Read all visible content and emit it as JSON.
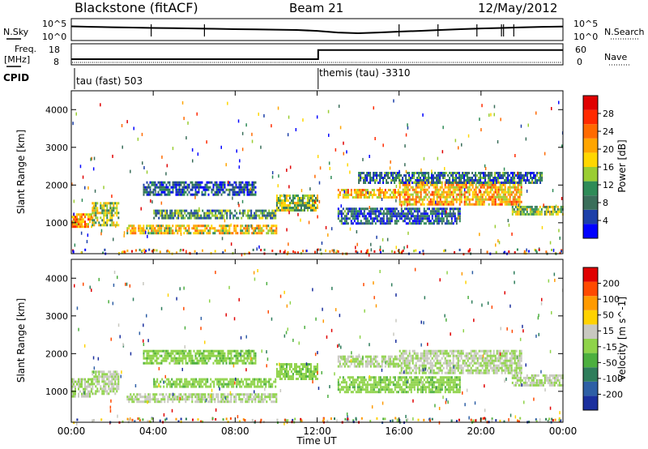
{
  "header": {
    "station": "Blackstone (fitACF)",
    "beam": "Beam 21",
    "date": "12/May/2012"
  },
  "noise_panel": {
    "left_label": "N.Sky",
    "right_label": "N.Search",
    "left_ticks": [
      "10^5",
      "10^0"
    ],
    "right_ticks": [
      "10^5",
      "10^0"
    ]
  },
  "freq_panel": {
    "left_label_1": "Freq.",
    "left_label_2": "[MHz]",
    "right_label": "Nave",
    "left_ticks": [
      "18",
      "8"
    ],
    "right_ticks": [
      "60",
      "0"
    ]
  },
  "cpid": {
    "label": "CPID",
    "segments": [
      {
        "start_hour": 0.0,
        "text": "tau (fast) 503"
      },
      {
        "start_hour": 12.05,
        "text": "themis (tau) -3310"
      }
    ]
  },
  "colorbar_power": {
    "label": "Power [dB]",
    "ticks": [
      "28",
      "24",
      "20",
      "16",
      "12",
      "8",
      "4"
    ],
    "colors": [
      "#0000ff",
      "#1c3fa8",
      "#3a6e5a",
      "#2e8b57",
      "#9acd32",
      "#ffd700",
      "#ffa500",
      "#ff6a00",
      "#ff2a00",
      "#e00000"
    ]
  },
  "colorbar_velocity": {
    "label": "Velocity [m s^-1]",
    "ticks": [
      "200",
      "100",
      "50",
      "15",
      "-15",
      "-50",
      "-100",
      "-200"
    ],
    "colors": [
      "#1a2f9e",
      "#2e5fa5",
      "#2e7d5b",
      "#4caf3f",
      "#8fd34a",
      "#c8c8c0",
      "#ffd200",
      "#ff9a00",
      "#ff4a00",
      "#e00000"
    ]
  },
  "axis_text": {
    "x_ticks": [
      "00:00",
      "04:00",
      "08:00",
      "12:00",
      "16:00",
      "20:00",
      "00:00"
    ],
    "xlabel": "Time UT",
    "ylabel": "Slant Range [km]",
    "y_ticks": [
      "1000",
      "2000",
      "3000",
      "4000"
    ]
  },
  "chart_data": [
    {
      "type": "heatmap",
      "title": "Power",
      "xlabel": "Time UT",
      "ylabel": "Slant Range [km]",
      "xlim": [
        0,
        24
      ],
      "ylim": [
        180,
        4500
      ],
      "zlabel": "Power [dB]",
      "zlim": [
        0,
        32
      ],
      "bands": [
        {
          "t0": 0.0,
          "t1": 1.0,
          "r0": 900,
          "r1": 1250,
          "z": 22
        },
        {
          "t0": 1.0,
          "t1": 2.3,
          "r0": 950,
          "r1": 1550,
          "z": 14
        },
        {
          "t0": 2.7,
          "t1": 10.0,
          "r0": 720,
          "r1": 950,
          "z": 18
        },
        {
          "t0": 4.0,
          "t1": 10.0,
          "r0": 1100,
          "r1": 1350,
          "z": 10
        },
        {
          "t0": 3.5,
          "t1": 9.0,
          "r0": 1750,
          "r1": 2100,
          "z": 6
        },
        {
          "t0": 10.0,
          "t1": 12.0,
          "r0": 1300,
          "r1": 1750,
          "z": 14
        },
        {
          "t0": 13.0,
          "t1": 16.0,
          "r0": 1650,
          "r1": 1900,
          "z": 20
        },
        {
          "t0": 16.0,
          "t1": 22.0,
          "r0": 1500,
          "r1": 2100,
          "z": 20
        },
        {
          "t0": 21.5,
          "t1": 24.0,
          "r0": 1200,
          "r1": 1450,
          "z": 14
        },
        {
          "t0": 13.0,
          "t1": 19.0,
          "r0": 1000,
          "r1": 1400,
          "z": 6
        },
        {
          "t0": 14.0,
          "t1": 23.0,
          "r0": 2050,
          "r1": 2350,
          "z": 8
        }
      ]
    },
    {
      "type": "heatmap",
      "title": "Velocity",
      "xlabel": "Time UT",
      "ylabel": "Slant Range [km]",
      "xlim": [
        0,
        24
      ],
      "ylim": [
        180,
        4500
      ],
      "zlabel": "Velocity [m s^-1]",
      "zlim": [
        -250,
        250
      ],
      "bands": [
        {
          "t0": 0.0,
          "t1": 1.0,
          "r0": 850,
          "r1": 1350,
          "z": 0
        },
        {
          "t0": 1.0,
          "t1": 2.3,
          "r0": 950,
          "r1": 1550,
          "z": 0
        },
        {
          "t0": 2.7,
          "t1": 10.0,
          "r0": 720,
          "r1": 950,
          "z": 0
        },
        {
          "t0": 4.0,
          "t1": 10.0,
          "r0": 1100,
          "r1": 1350,
          "z": 30
        },
        {
          "t0": 3.5,
          "t1": 9.0,
          "r0": 1750,
          "r1": 2100,
          "z": 30
        },
        {
          "t0": 10.0,
          "t1": 12.0,
          "r0": 1300,
          "r1": 1750,
          "z": 30
        },
        {
          "t0": 13.0,
          "t1": 16.0,
          "r0": 1650,
          "r1": 1950,
          "z": 0
        },
        {
          "t0": 16.0,
          "t1": 22.0,
          "r0": 1500,
          "r1": 2100,
          "z": 0
        },
        {
          "t0": 21.5,
          "t1": 24.0,
          "r0": 1150,
          "r1": 1450,
          "z": 0
        },
        {
          "t0": 13.0,
          "t1": 19.0,
          "r0": 1000,
          "r1": 1400,
          "z": 30
        }
      ]
    },
    {
      "type": "line",
      "title": "N.Sky",
      "y_scale": "log",
      "ylim": [
        1,
        100000
      ],
      "x": [
        0,
        1,
        2,
        3,
        4,
        5,
        6,
        7,
        8,
        9,
        10,
        11,
        12,
        13,
        14,
        15,
        16,
        17,
        18,
        19,
        20,
        21,
        22,
        23,
        24
      ],
      "values": [
        2000,
        1500,
        1200,
        1000,
        800,
        700,
        600,
        500,
        400,
        350,
        300,
        250,
        150,
        60,
        40,
        60,
        100,
        150,
        250,
        400,
        600,
        800,
        1100,
        1500,
        1800
      ]
    },
    {
      "type": "line",
      "title": "Freq.",
      "x": [
        0,
        12.05,
        12.05,
        24
      ],
      "values": [
        10.5,
        10.5,
        15.2,
        15.2
      ],
      "ylim": [
        8,
        18
      ]
    }
  ]
}
